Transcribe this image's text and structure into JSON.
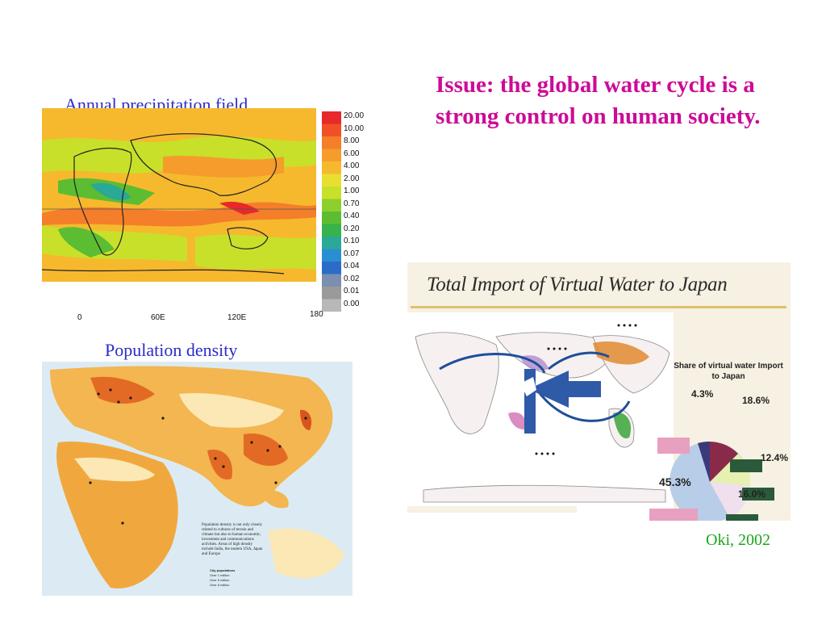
{
  "issue_text": "Issue: the global water cycle is a strong control on human society.",
  "precip": {
    "caption": "Annual precipitation field",
    "legend": [
      "20.00",
      "10.00",
      "8.00",
      "6.00",
      "4.00",
      "2.00",
      "1.00",
      "0.70",
      "0.40",
      "0.20",
      "0.10",
      "0.07",
      "0.04",
      "0.02",
      "0.01",
      "0.00"
    ],
    "legend_colors": [
      "#e8282a",
      "#f05024",
      "#f47e2a",
      "#f59c2c",
      "#f6b92e",
      "#e8e030",
      "#c8e02a",
      "#8dcf2c",
      "#5cbd32",
      "#38b24a",
      "#2aa898",
      "#2a8fd0",
      "#2a6cc8",
      "#7b8fb0",
      "#9a9a9a",
      "#b8b8b8"
    ],
    "x_ticks": [
      "0",
      "60E",
      "120E",
      "180"
    ]
  },
  "population": {
    "caption": "Population density",
    "note": "Population density is not only closely related to cultures of terrain and climate but also to human economic, investment and communications activities. Areas of high density include India, the eastern USA, Japan and Europe",
    "legend_title": "City populations",
    "legend_items": [
      "Over 1 million",
      "Over 5 million",
      "Over 8 million"
    ]
  },
  "virtual_water": {
    "title": "Total Import of Virtual Water to Japan",
    "share_title": "Share of virtual water Import to Japan",
    "percentages": [
      "4.3%",
      "18.6%",
      "12.4%",
      "45.3%",
      "16.0%"
    ]
  },
  "credit": "Oki, 2002"
}
